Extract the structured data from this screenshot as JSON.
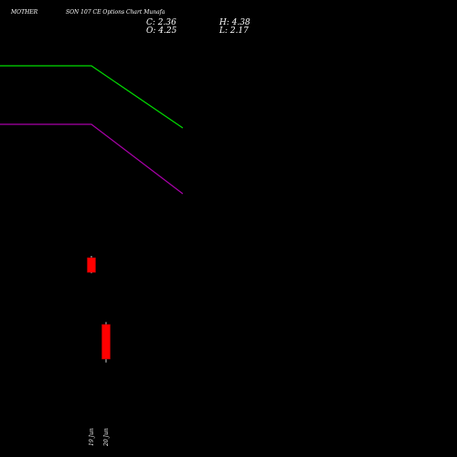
{
  "header": {
    "symbol": "MOTHERSON",
    "subtitle": "SON 107 CE Options Chart Munafa",
    "symbol_display": "MOTHER",
    "subtitle_display": "SON 107 CE Options Chart Munafa"
  },
  "ohlc_text": {
    "close": "C: 2.36",
    "open": "O: 4.25",
    "high": "H: 4.38",
    "low": "L: 2.17"
  },
  "colors": {
    "background": "#000000",
    "up": "#00ff00",
    "down": "#ff0000",
    "line_upper": "#00dd00",
    "line_lower": "#aa00aa"
  },
  "chart_data": {
    "type": "candlestick",
    "x": [
      "19 Jun",
      "20 Jun"
    ],
    "candles": [
      {
        "date": "19 Jun",
        "open": 7.9,
        "high": 8.0,
        "low": 7.05,
        "close": 7.1
      },
      {
        "date": "20 Jun",
        "open": 4.25,
        "high": 4.38,
        "low": 2.17,
        "close": 2.36
      }
    ],
    "overlays": [
      {
        "color": "#00dd00",
        "values": [
          18.4,
          18.4,
          15.0
        ]
      },
      {
        "color": "#aa00aa",
        "values": [
          15.2,
          15.2,
          11.4
        ]
      }
    ],
    "ylim": [
      0,
      20
    ]
  }
}
